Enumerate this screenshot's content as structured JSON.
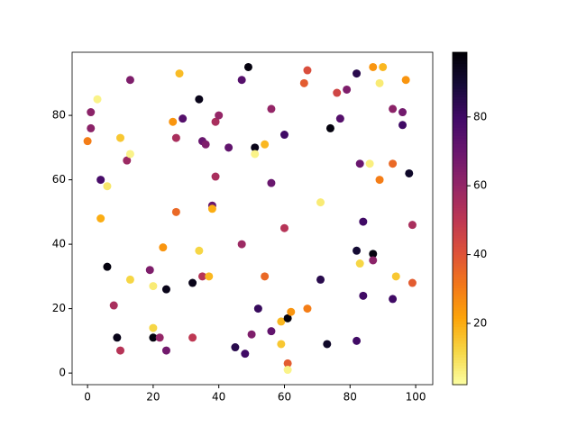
{
  "chart_data": {
    "type": "scatter",
    "x": [
      3,
      1,
      1,
      0,
      4,
      6,
      4,
      6,
      13,
      10,
      12,
      13,
      8,
      9,
      10,
      13,
      19,
      20,
      20,
      20,
      22,
      24,
      23,
      24,
      28,
      26,
      29,
      27,
      27,
      34,
      35,
      36,
      39,
      40,
      39,
      38,
      38,
      34,
      35,
      37,
      32,
      32,
      43,
      47,
      49,
      51,
      51,
      54,
      56,
      56,
      47,
      54,
      52,
      50,
      45,
      48,
      56,
      59,
      59,
      61,
      62,
      61,
      61,
      60,
      60,
      66,
      67,
      67,
      71,
      71,
      73,
      74,
      76,
      77,
      79,
      82,
      83,
      82,
      83,
      84,
      84,
      82,
      86,
      87,
      90,
      89,
      87,
      87,
      89,
      93,
      93,
      96,
      96,
      97,
      98,
      99,
      99,
      94,
      93
    ],
    "values": [
      85,
      81,
      76,
      72,
      60,
      58,
      48,
      33,
      91,
      73,
      66,
      68,
      21,
      11,
      7,
      29,
      32,
      27,
      14,
      11,
      11,
      7,
      39,
      26,
      93,
      78,
      79,
      73,
      50,
      85,
      72,
      71,
      78,
      80,
      61,
      52,
      51,
      38,
      30,
      30,
      28,
      11,
      70,
      91,
      95,
      70,
      68,
      71,
      82,
      59,
      40,
      30,
      20,
      12,
      8,
      6,
      13,
      16,
      9,
      17,
      19,
      3,
      1,
      45,
      74,
      90,
      94,
      20,
      53,
      29,
      9,
      76,
      87,
      79,
      88,
      93,
      65,
      38,
      34,
      47,
      24,
      10,
      65,
      95,
      95,
      90,
      37,
      35,
      60,
      82,
      65,
      81,
      77,
      91,
      62,
      46,
      28,
      30,
      23
    ],
    "c": [
      5,
      62,
      62,
      30,
      78,
      8,
      20,
      97,
      65,
      15,
      58,
      5,
      55,
      95,
      52,
      12,
      65,
      7,
      12,
      97,
      60,
      68,
      25,
      95,
      17,
      25,
      75,
      55,
      35,
      95,
      70,
      65,
      55,
      60,
      55,
      70,
      20,
      12,
      52,
      18,
      95,
      50,
      72,
      75,
      97,
      95,
      5,
      18,
      60,
      70,
      58,
      35,
      82,
      65,
      85,
      80,
      72,
      18,
      15,
      97,
      25,
      38,
      5,
      52,
      80,
      38,
      42,
      30,
      7,
      85,
      92,
      97,
      45,
      75,
      65,
      85,
      70,
      90,
      12,
      80,
      80,
      80,
      6,
      25,
      18,
      7,
      97,
      62,
      30,
      62,
      35,
      68,
      80,
      25,
      92,
      55,
      38,
      15,
      80
    ],
    "colormap": [
      "#fcffa4",
      "#f6d746",
      "#fca50a",
      "#f37819",
      "#dd513a",
      "#bc3754",
      "#932667",
      "#6a176e",
      "#420a68",
      "#160b39",
      "#000004"
    ],
    "clim": [
      2.2,
      98.8
    ],
    "cticks": [
      20,
      40,
      60,
      80
    ],
    "xlim": [
      -4.7,
      105.2
    ],
    "ylim": [
      -3.6,
      99.6
    ],
    "xticks": [
      0,
      20,
      40,
      60,
      80,
      100
    ],
    "yticks": [
      0,
      20,
      40,
      60,
      80
    ]
  }
}
